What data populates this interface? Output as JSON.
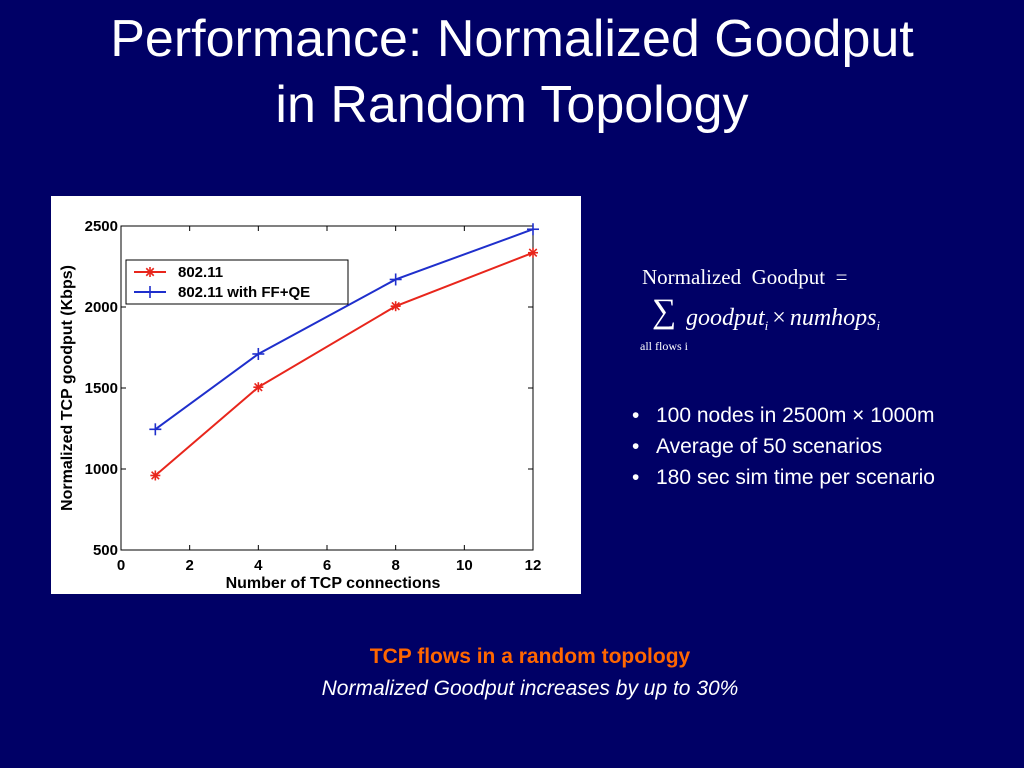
{
  "slide": {
    "title_line1": "Performance: Normalized Goodput",
    "title_line2": "in Random Topology"
  },
  "formula": {
    "lhs": "Normalized  Goodput  =",
    "sum_symbol": "∑",
    "sum_subscript": "all flows i",
    "term1": "goodput",
    "term1_sub": "i",
    "operator": "×",
    "term2": "numhops",
    "term2_sub": "i"
  },
  "bullets": [
    "100 nodes in 2500m × 1000m",
    "Average of 50 scenarios",
    "180 sec sim time per scenario"
  ],
  "captions": {
    "line1": "TCP flows in a random topology",
    "line2": "Normalized Goodput increases by up to 30%"
  },
  "chart_data": {
    "type": "line",
    "title": "",
    "xlabel": "Number of TCP connections",
    "ylabel": "Normalized TCP goodput (Kbps)",
    "xlim": [
      0,
      12
    ],
    "ylim": [
      500,
      2500
    ],
    "xticks": [
      0,
      2,
      4,
      6,
      8,
      10,
      12
    ],
    "yticks": [
      500,
      1000,
      1500,
      2000,
      2500
    ],
    "grid": false,
    "legend_position": "top-left",
    "series": [
      {
        "name": "802.11",
        "marker": "asterisk",
        "color": "#e8261c",
        "x": [
          1,
          4,
          8,
          12
        ],
        "y": [
          960,
          1505,
          2005,
          2335
        ]
      },
      {
        "name": "802.11 with FF+QE",
        "marker": "plus",
        "color": "#1f2fcc",
        "x": [
          1,
          4,
          8,
          12
        ],
        "y": [
          1245,
          1710,
          2170,
          2480
        ]
      }
    ]
  }
}
